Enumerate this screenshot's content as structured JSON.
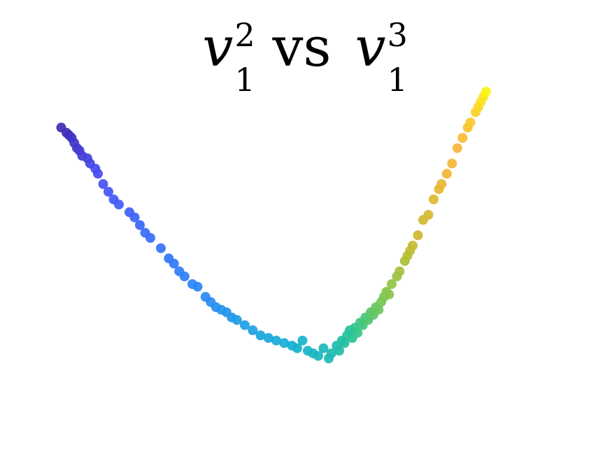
{
  "chart_data": {
    "type": "scatter",
    "title": {
      "var": "v",
      "sub": "1",
      "sup_x": "2",
      "sup_y": "3",
      "word": "vs"
    },
    "xlabel": "",
    "ylabel": "",
    "axes_visible": false,
    "grid": false,
    "colormap": "parula",
    "xlim": [
      -1.0,
      1.0
    ],
    "ylim": [
      -0.15,
      1.05
    ],
    "series": [
      {
        "points": [
          [
            -0.98,
            0.88,
            0.02
          ],
          [
            -0.96,
            0.86,
            0.03
          ],
          [
            -0.95,
            0.85,
            0.04
          ],
          [
            -0.94,
            0.84,
            0.05
          ],
          [
            -0.93,
            0.82,
            0.06
          ],
          [
            -0.92,
            0.8,
            0.07
          ],
          [
            -0.91,
            0.79,
            0.08
          ],
          [
            -0.9,
            0.77,
            0.09
          ],
          [
            -0.88,
            0.76,
            0.1
          ],
          [
            -0.87,
            0.74,
            0.11
          ],
          [
            -0.85,
            0.72,
            0.13
          ],
          [
            -0.84,
            0.7,
            0.14
          ],
          [
            -0.82,
            0.66,
            0.16
          ],
          [
            -0.8,
            0.63,
            0.17
          ],
          [
            -0.78,
            0.6,
            0.18
          ],
          [
            -0.76,
            0.58,
            0.19
          ],
          [
            -0.72,
            0.55,
            0.2
          ],
          [
            -0.7,
            0.53,
            0.21
          ],
          [
            -0.68,
            0.5,
            0.22
          ],
          [
            -0.66,
            0.47,
            0.23
          ],
          [
            -0.64,
            0.45,
            0.24
          ],
          [
            -0.6,
            0.41,
            0.25
          ],
          [
            -0.57,
            0.37,
            0.26
          ],
          [
            -0.55,
            0.35,
            0.27
          ],
          [
            -0.53,
            0.32,
            0.28
          ],
          [
            -0.51,
            0.3,
            0.29
          ],
          [
            -0.48,
            0.27,
            0.3
          ],
          [
            -0.46,
            0.26,
            0.31
          ],
          [
            -0.43,
            0.22,
            0.32
          ],
          [
            -0.41,
            0.2,
            0.33
          ],
          [
            -0.39,
            0.18,
            0.34
          ],
          [
            -0.37,
            0.17,
            0.35
          ],
          [
            -0.35,
            0.16,
            0.36
          ],
          [
            -0.33,
            0.14,
            0.37
          ],
          [
            -0.31,
            0.13,
            0.38
          ],
          [
            -0.28,
            0.11,
            0.39
          ],
          [
            -0.25,
            0.09,
            0.4
          ],
          [
            -0.22,
            0.07,
            0.41
          ],
          [
            -0.19,
            0.06,
            0.42
          ],
          [
            -0.16,
            0.05,
            0.43
          ],
          [
            -0.13,
            0.04,
            0.44
          ],
          [
            -0.1,
            0.03,
            0.45
          ],
          [
            -0.08,
            0.02,
            0.46
          ],
          [
            -0.06,
            0.05,
            0.47
          ],
          [
            -0.04,
            0.01,
            0.48
          ],
          [
            -0.02,
            0.0,
            0.49
          ],
          [
            0.0,
            -0.01,
            0.5
          ],
          [
            0.02,
            0.02,
            0.51
          ],
          [
            0.04,
            -0.02,
            0.52
          ],
          [
            0.05,
            0.0,
            0.53
          ],
          [
            0.07,
            0.03,
            0.54
          ],
          [
            0.08,
            0.01,
            0.55
          ],
          [
            0.09,
            0.05,
            0.56
          ],
          [
            0.1,
            0.04,
            0.57
          ],
          [
            0.11,
            0.07,
            0.58
          ],
          [
            0.12,
            0.09,
            0.59
          ],
          [
            0.13,
            0.06,
            0.6
          ],
          [
            0.14,
            0.1,
            0.61
          ],
          [
            0.15,
            0.08,
            0.62
          ],
          [
            0.16,
            0.12,
            0.63
          ],
          [
            0.17,
            0.11,
            0.64
          ],
          [
            0.18,
            0.14,
            0.65
          ],
          [
            0.19,
            0.13,
            0.66
          ],
          [
            0.2,
            0.16,
            0.67
          ],
          [
            0.21,
            0.15,
            0.68
          ],
          [
            0.22,
            0.18,
            0.69
          ],
          [
            0.23,
            0.17,
            0.7
          ],
          [
            0.24,
            0.2,
            0.71
          ],
          [
            0.25,
            0.22,
            0.72
          ],
          [
            0.26,
            0.24,
            0.73
          ],
          [
            0.27,
            0.23,
            0.74
          ],
          [
            0.28,
            0.27,
            0.75
          ],
          [
            0.3,
            0.3,
            0.76
          ],
          [
            0.31,
            0.32,
            0.77
          ],
          [
            0.33,
            0.36,
            0.78
          ],
          [
            0.34,
            0.38,
            0.79
          ],
          [
            0.35,
            0.4,
            0.8
          ],
          [
            0.36,
            0.42,
            0.81
          ],
          [
            0.38,
            0.46,
            0.82
          ],
          [
            0.4,
            0.52,
            0.83
          ],
          [
            0.42,
            0.54,
            0.84
          ],
          [
            0.44,
            0.6,
            0.85
          ],
          [
            0.46,
            0.64,
            0.86
          ],
          [
            0.47,
            0.66,
            0.87
          ],
          [
            0.49,
            0.7,
            0.88
          ],
          [
            0.51,
            0.74,
            0.89
          ],
          [
            0.53,
            0.8,
            0.9
          ],
          [
            0.55,
            0.84,
            0.91
          ],
          [
            0.57,
            0.88,
            0.92
          ],
          [
            0.58,
            0.9,
            0.93
          ],
          [
            0.6,
            0.94,
            0.94
          ],
          [
            0.61,
            0.96,
            0.95
          ],
          [
            0.62,
            0.98,
            0.96
          ],
          [
            0.63,
            1.0,
            0.97
          ],
          [
            0.64,
            1.02,
            0.99
          ]
        ]
      }
    ]
  }
}
